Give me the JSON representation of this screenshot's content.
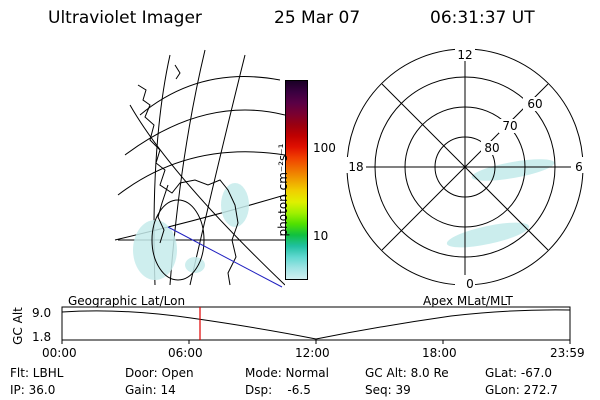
{
  "header": {
    "instrument": "Ultraviolet Imager",
    "date": "25 Mar 07",
    "time": "06:31:37 UT"
  },
  "colorbar": {
    "unit_label": "photon cm⁻²s⁻¹",
    "tick_100": "100",
    "tick_10": "10",
    "colors_top_to_bottom": [
      "#1a0026",
      "#3a0040",
      "#5a0045",
      "#7a0030",
      "#9a0010",
      "#c00000",
      "#e01000",
      "#f04000",
      "#f07000",
      "#f0a000",
      "#f0d000",
      "#e0f000",
      "#a0f000",
      "#50e000",
      "#10c040",
      "#20c0a0",
      "#60d8d0",
      "#a0e4e4",
      "#d0eef0"
    ]
  },
  "polar": {
    "lat_labels": [
      "80",
      "70",
      "60"
    ],
    "mlt_labels": {
      "top": "12",
      "bottom": "0",
      "left": "18",
      "right": "6"
    }
  },
  "strip": {
    "left_title": "Geographic Lat/Lon",
    "right_title": "Apex MLat/MLT",
    "ylabel": "GC Alt",
    "ytick_top": "9.0",
    "ytick_bottom": "1.8",
    "xticks": [
      "00:00",
      "06:00",
      "12:00",
      "18:00",
      "23:59"
    ],
    "marker_color": "#e00000"
  },
  "footer": {
    "flt": "Flt: LBHL",
    "ip": "IP: 36.0",
    "door": "Door: Open",
    "gain": "Gain: 14",
    "mode": "Mode: Normal",
    "dsp": "Dsp:    -6.5",
    "gc_alt": "GC Alt: 8.0 Re",
    "seq": "Seq: 39",
    "glat": "GLat: -67.0",
    "glon": "GLon: 272.7"
  }
}
